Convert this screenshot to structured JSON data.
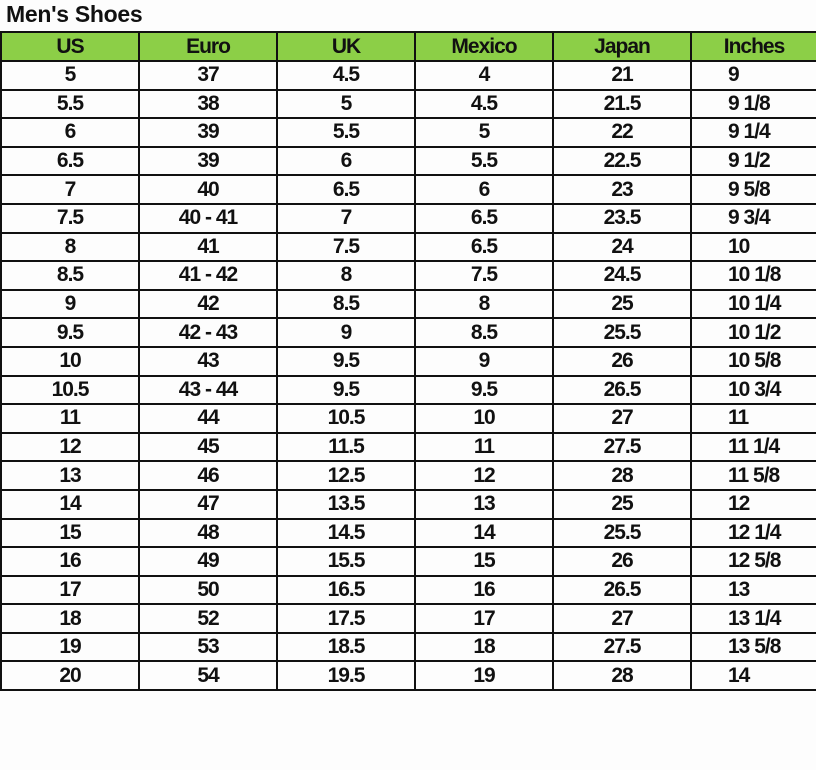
{
  "title": "Men's Shoes",
  "headers": [
    "US",
    "Euro",
    "UK",
    "Mexico",
    "Japan",
    "Inches"
  ],
  "header_color": "#8ccf47",
  "rows": [
    [
      "5",
      "37",
      "4.5",
      "4",
      "21",
      "9"
    ],
    [
      "5.5",
      "38",
      "5",
      "4.5",
      "21.5",
      "9 1/8"
    ],
    [
      "6",
      "39",
      "5.5",
      "5",
      "22",
      "9 1/4"
    ],
    [
      "6.5",
      "39",
      "6",
      "5.5",
      "22.5",
      "9 1/2"
    ],
    [
      "7",
      "40",
      "6.5",
      "6",
      "23",
      "9 5/8"
    ],
    [
      "7.5",
      "40 - 41",
      "7",
      "6.5",
      "23.5",
      "9 3/4"
    ],
    [
      "8",
      "41",
      "7.5",
      "6.5",
      "24",
      "10"
    ],
    [
      "8.5",
      "41 - 42",
      "8",
      "7.5",
      "24.5",
      "10 1/8"
    ],
    [
      "9",
      "42",
      "8.5",
      "8",
      "25",
      "10 1/4"
    ],
    [
      "9.5",
      "42 - 43",
      "9",
      "8.5",
      "25.5",
      "10 1/2"
    ],
    [
      "10",
      "43",
      "9.5",
      "9",
      "26",
      "10 5/8"
    ],
    [
      "10.5",
      "43 - 44",
      "9.5",
      "9.5",
      "26.5",
      "10 3/4"
    ],
    [
      "11",
      "44",
      "10.5",
      "10",
      "27",
      "11"
    ],
    [
      "12",
      "45",
      "11.5",
      "11",
      "27.5",
      "11 1/4"
    ],
    [
      "13",
      "46",
      "12.5",
      "12",
      "28",
      "11 5/8"
    ],
    [
      "14",
      "47",
      "13.5",
      "13",
      "25",
      "12"
    ],
    [
      "15",
      "48",
      "14.5",
      "14",
      "25.5",
      "12 1/4"
    ],
    [
      "16",
      "49",
      "15.5",
      "15",
      "26",
      "12 5/8"
    ],
    [
      "17",
      "50",
      "16.5",
      "16",
      "26.5",
      "13"
    ],
    [
      "18",
      "52",
      "17.5",
      "17",
      "27",
      "13 1/4"
    ],
    [
      "19",
      "53",
      "18.5",
      "18",
      "27.5",
      "13 5/8"
    ],
    [
      "20",
      "54",
      "19.5",
      "19",
      "28",
      "14"
    ]
  ]
}
